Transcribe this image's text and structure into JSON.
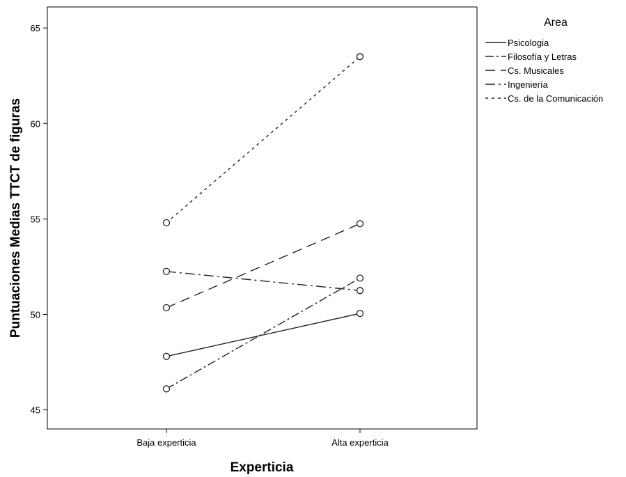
{
  "chart_data": {
    "type": "line",
    "categories": [
      "Baja experticia",
      "Alta experticia"
    ],
    "xlabel": "Experticia",
    "ylabel": "Puntuaciones Medias TTCT de figuras",
    "ylim": [
      44,
      66.1
    ],
    "yticks": [
      45,
      50,
      55,
      60,
      65
    ],
    "grid": false,
    "legend_title": "Area",
    "legend_position": "top-right, outside plot",
    "series": [
      {
        "name": "Psicologia",
        "values": [
          47.8,
          50.05
        ],
        "dash": "solid"
      },
      {
        "name": "Filosofía y Letras",
        "values": [
          46.1,
          51.9
        ],
        "dash": "dash-dot"
      },
      {
        "name": "Cs. Musicales",
        "values": [
          50.35,
          54.75
        ],
        "dash": "long-dash"
      },
      {
        "name": "Ingeniería",
        "values": [
          52.25,
          51.25
        ],
        "dash": "long-dash-dot"
      },
      {
        "name": "Cs. de la Comunicación",
        "values": [
          54.8,
          63.5
        ],
        "dash": "dotted"
      }
    ]
  },
  "colors": {
    "line": "#222222",
    "axis": "#000000",
    "background": "#ffffff"
  }
}
